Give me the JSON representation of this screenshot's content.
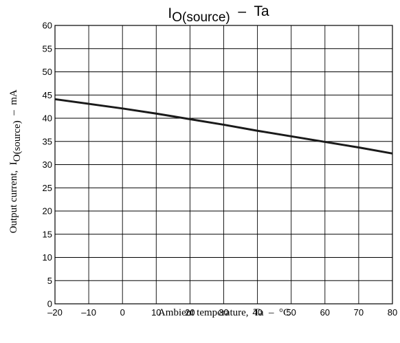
{
  "chart_data": {
    "type": "line",
    "title": {
      "main": "I",
      "subscript": "O(source)",
      "suffix": "  –  Ta"
    },
    "xlabel": "Ambient temperature,  Ta  –  °C",
    "ylabel": {
      "prefix": "Output current,  I",
      "subscript": "O(source)",
      "suffix": "  –  mA"
    },
    "xlim": [
      -20,
      80
    ],
    "ylim": [
      0,
      60
    ],
    "x_ticks": [
      -20,
      -10,
      0,
      10,
      20,
      30,
      40,
      50,
      60,
      70,
      80
    ],
    "x_tick_labels": [
      "–20",
      "–10",
      "0",
      "10",
      "20",
      "30",
      "40",
      "50",
      "60",
      "70",
      "80"
    ],
    "y_ticks": [
      0,
      5,
      10,
      15,
      20,
      25,
      30,
      35,
      40,
      45,
      50,
      55,
      60
    ],
    "y_tick_labels": [
      "0",
      "5",
      "10",
      "15",
      "20",
      "25",
      "30",
      "35",
      "40",
      "45",
      "50",
      "55",
      "60"
    ],
    "grid": true,
    "series": [
      {
        "x": [
          -20,
          -10,
          0,
          10,
          20,
          30,
          40,
          50,
          60,
          70,
          80
        ],
        "y": [
          44.1,
          43.1,
          42.1,
          41.0,
          39.8,
          38.6,
          37.3,
          36.1,
          34.9,
          33.7,
          32.4
        ]
      }
    ],
    "colors": {
      "line": "#1a1a1a",
      "grid": "#000000"
    }
  }
}
